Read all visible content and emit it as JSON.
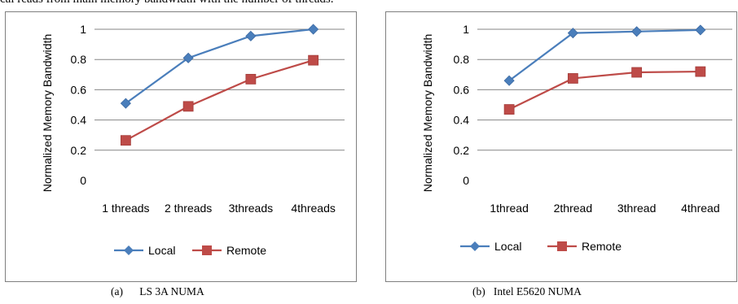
{
  "page_fragment": "cal reads from main memory bandwidth with the number of threads.",
  "chart_data": [
    {
      "type": "line",
      "title": "",
      "caption": "(a)      LS 3A NUMA",
      "ylabel": "Normalized Memory Bandwidth",
      "xlabel": "",
      "categories": [
        "1 threads",
        "2 threads",
        "3threads",
        "4threads"
      ],
      "ylim": [
        0,
        1
      ],
      "yticks": [
        "0",
        "0.2",
        "0.4",
        "0.6",
        "0.8",
        "1"
      ],
      "grid": true,
      "legend": "bottom",
      "series": [
        {
          "name": "Local",
          "values": [
            0.51,
            0.81,
            0.955,
            1.0
          ],
          "color": "#4a7ebb",
          "marker": "diamond"
        },
        {
          "name": "Remote",
          "values": [
            0.265,
            0.49,
            0.67,
            0.795
          ],
          "color": "#be4b48",
          "marker": "square"
        }
      ]
    },
    {
      "type": "line",
      "title": "",
      "caption": "(b)   Intel E5620 NUMA",
      "ylabel": "Normalized Memory Bandwidth",
      "xlabel": "",
      "categories": [
        "1thread",
        "2thread",
        "3thread",
        "4thread"
      ],
      "ylim": [
        0,
        1
      ],
      "yticks": [
        "0",
        "0.2",
        "0.4",
        "0.6",
        "0.8",
        "1"
      ],
      "grid": true,
      "legend": "bottom",
      "series": [
        {
          "name": "Local",
          "values": [
            0.66,
            0.975,
            0.985,
            0.995
          ],
          "color": "#4a7ebb",
          "marker": "diamond"
        },
        {
          "name": "Remote",
          "values": [
            0.47,
            0.675,
            0.715,
            0.72
          ],
          "color": "#be4b48",
          "marker": "square"
        }
      ]
    }
  ]
}
